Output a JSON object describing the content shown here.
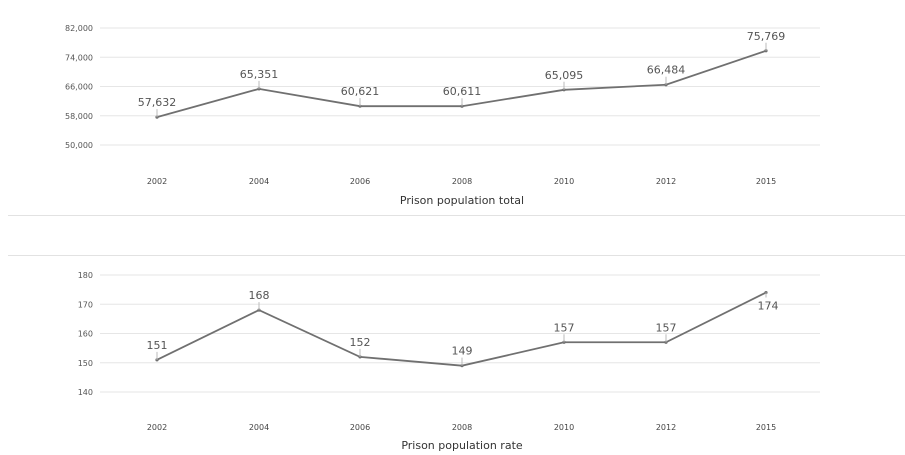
{
  "chart_data": [
    {
      "type": "line",
      "categories": [
        "2002",
        "2004",
        "2006",
        "2008",
        "2010",
        "2012",
        "2015"
      ],
      "values": [
        57632,
        65351,
        60621,
        60611,
        65095,
        66484,
        75769
      ],
      "value_labels": [
        "57,632",
        "65,351",
        "60,621",
        "60,611",
        "65,095",
        "66,484",
        "75,769"
      ],
      "yticks": [
        "82,000",
        "74,000",
        "66,000",
        "58,000",
        "50,000"
      ],
      "ylim": [
        50000,
        82000
      ],
      "xlabel": "Prison population total",
      "ylabel": "",
      "grid": true,
      "color": "#707070"
    },
    {
      "type": "line",
      "categories": [
        "2002",
        "2004",
        "2006",
        "2008",
        "2010",
        "2012",
        "2015"
      ],
      "values": [
        151,
        168,
        152,
        149,
        157,
        157,
        174
      ],
      "value_labels": [
        "151",
        "168",
        "152",
        "149",
        "157",
        "157",
        "174"
      ],
      "yticks": [
        "180",
        "170",
        "160",
        "150",
        "140"
      ],
      "ylim": [
        140,
        180
      ],
      "xlabel": "Prison population rate",
      "ylabel": "",
      "grid": true,
      "color": "#707070"
    }
  ]
}
